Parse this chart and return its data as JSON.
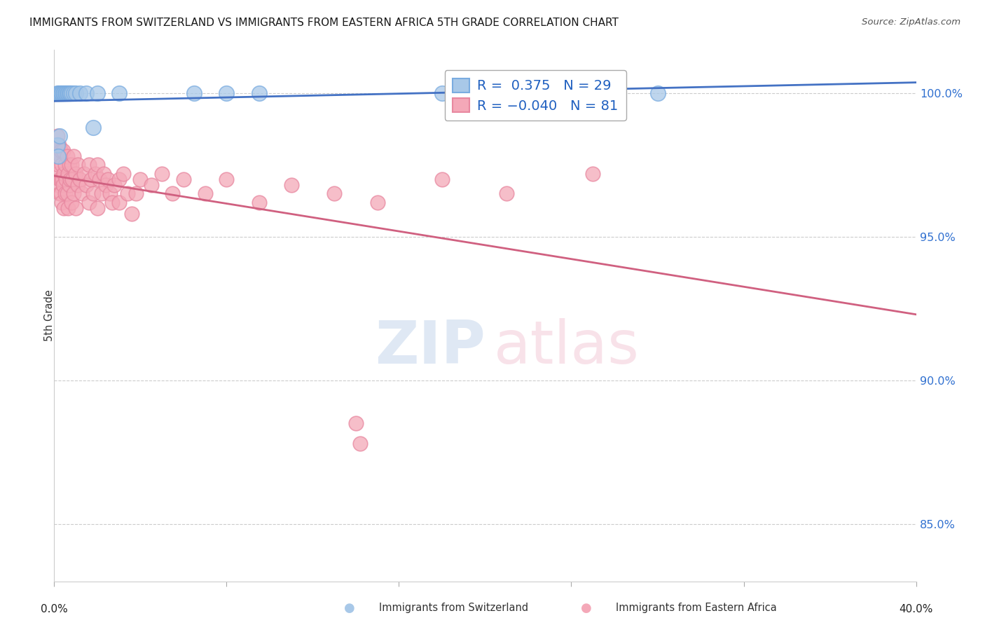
{
  "title": "IMMIGRANTS FROM SWITZERLAND VS IMMIGRANTS FROM EASTERN AFRICA 5TH GRADE CORRELATION CHART",
  "source": "Source: ZipAtlas.com",
  "ylabel": "5th Grade",
  "ytick_values": [
    85.0,
    90.0,
    95.0,
    100.0
  ],
  "R_swiss": 0.375,
  "N_swiss": 29,
  "R_eastern": -0.04,
  "N_eastern": 81,
  "swiss_color": "#a8c8e8",
  "eastern_color": "#f4a8b8",
  "swiss_edge_color": "#7aace0",
  "eastern_edge_color": "#e888a0",
  "swiss_line_color": "#4472c4",
  "eastern_line_color": "#d06080",
  "background_color": "#ffffff",
  "grid_color": "#cccccc",
  "xmin": 0.0,
  "xmax": 40.0,
  "ymin": 83.0,
  "ymax": 101.5,
  "swiss_points": [
    [
      0.15,
      100.0
    ],
    [
      0.2,
      100.0
    ],
    [
      0.25,
      100.0
    ],
    [
      0.3,
      100.0
    ],
    [
      0.35,
      100.0
    ],
    [
      0.4,
      100.0
    ],
    [
      0.45,
      100.0
    ],
    [
      0.5,
      100.0
    ],
    [
      0.55,
      100.0
    ],
    [
      0.6,
      100.0
    ],
    [
      0.65,
      100.0
    ],
    [
      0.7,
      100.0
    ],
    [
      0.75,
      100.0
    ],
    [
      0.8,
      100.0
    ],
    [
      0.9,
      100.0
    ],
    [
      1.0,
      100.0
    ],
    [
      1.2,
      100.0
    ],
    [
      1.5,
      100.0
    ],
    [
      2.0,
      100.0
    ],
    [
      3.0,
      100.0
    ],
    [
      0.15,
      98.2
    ],
    [
      0.2,
      97.8
    ],
    [
      0.25,
      98.5
    ],
    [
      1.8,
      98.8
    ],
    [
      6.5,
      100.0
    ],
    [
      8.0,
      100.0
    ],
    [
      9.5,
      100.0
    ],
    [
      18.0,
      100.0
    ],
    [
      28.0,
      100.0
    ]
  ],
  "eastern_points": [
    [
      0.1,
      98.2
    ],
    [
      0.12,
      97.8
    ],
    [
      0.15,
      98.5
    ],
    [
      0.15,
      97.2
    ],
    [
      0.18,
      98.0
    ],
    [
      0.2,
      97.5
    ],
    [
      0.2,
      96.8
    ],
    [
      0.22,
      98.2
    ],
    [
      0.25,
      97.0
    ],
    [
      0.25,
      96.5
    ],
    [
      0.28,
      97.8
    ],
    [
      0.3,
      98.0
    ],
    [
      0.3,
      97.0
    ],
    [
      0.32,
      96.5
    ],
    [
      0.35,
      97.5
    ],
    [
      0.35,
      96.2
    ],
    [
      0.38,
      97.0
    ],
    [
      0.4,
      98.0
    ],
    [
      0.4,
      96.8
    ],
    [
      0.45,
      97.2
    ],
    [
      0.45,
      96.0
    ],
    [
      0.5,
      97.5
    ],
    [
      0.5,
      96.5
    ],
    [
      0.55,
      97.0
    ],
    [
      0.6,
      97.8
    ],
    [
      0.6,
      96.5
    ],
    [
      0.65,
      97.2
    ],
    [
      0.65,
      96.0
    ],
    [
      0.7,
      97.5
    ],
    [
      0.7,
      96.8
    ],
    [
      0.75,
      97.0
    ],
    [
      0.8,
      97.5
    ],
    [
      0.8,
      96.2
    ],
    [
      0.85,
      97.0
    ],
    [
      0.9,
      97.8
    ],
    [
      0.9,
      96.5
    ],
    [
      1.0,
      97.2
    ],
    [
      1.0,
      96.0
    ],
    [
      1.1,
      97.5
    ],
    [
      1.1,
      96.8
    ],
    [
      1.2,
      97.0
    ],
    [
      1.3,
      96.5
    ],
    [
      1.4,
      97.2
    ],
    [
      1.5,
      96.8
    ],
    [
      1.6,
      97.5
    ],
    [
      1.6,
      96.2
    ],
    [
      1.7,
      97.0
    ],
    [
      1.8,
      96.5
    ],
    [
      1.9,
      97.2
    ],
    [
      2.0,
      97.5
    ],
    [
      2.0,
      96.0
    ],
    [
      2.1,
      97.0
    ],
    [
      2.2,
      96.5
    ],
    [
      2.3,
      97.2
    ],
    [
      2.4,
      96.8
    ],
    [
      2.5,
      97.0
    ],
    [
      2.6,
      96.5
    ],
    [
      2.7,
      96.2
    ],
    [
      2.8,
      96.8
    ],
    [
      3.0,
      97.0
    ],
    [
      3.0,
      96.2
    ],
    [
      3.2,
      97.2
    ],
    [
      3.4,
      96.5
    ],
    [
      3.6,
      95.8
    ],
    [
      3.8,
      96.5
    ],
    [
      4.0,
      97.0
    ],
    [
      4.5,
      96.8
    ],
    [
      5.0,
      97.2
    ],
    [
      5.5,
      96.5
    ],
    [
      6.0,
      97.0
    ],
    [
      7.0,
      96.5
    ],
    [
      8.0,
      97.0
    ],
    [
      9.5,
      96.2
    ],
    [
      11.0,
      96.8
    ],
    [
      13.0,
      96.5
    ],
    [
      15.0,
      96.2
    ],
    [
      18.0,
      97.0
    ],
    [
      21.0,
      96.5
    ],
    [
      25.0,
      97.2
    ],
    [
      14.0,
      88.5
    ],
    [
      14.2,
      87.8
    ]
  ],
  "legend_R_swiss_label": "R =  0.375   N = 29",
  "legend_R_eastern_label": "R = −0.040   N = 81"
}
